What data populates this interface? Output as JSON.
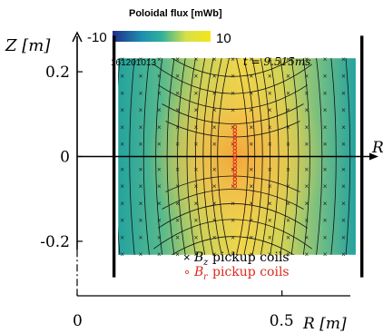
{
  "colors": {
    "cb_low": "#1f2d8a",
    "cb_mid1": "#1aa6a8",
    "cb_mid2": "#f3ea5a",
    "cb_high": "#f7e41a",
    "wall": "#000000",
    "bz_marker": "#222222",
    "br_marker": "#e0281e",
    "br_text": "#e0281e"
  },
  "chart_data": {
    "type": "heatmap",
    "title": "",
    "xlabel": "R [m]",
    "ylabel": "Z [m]",
    "x_ticks": [
      "0",
      "0.5"
    ],
    "y_ticks": [
      "0.2",
      "0",
      "-0.2"
    ],
    "colorbar": {
      "label": "Poloidal flux [mWb]",
      "min": -10,
      "max": 10,
      "min_label": "-10",
      "max_label": "10"
    },
    "shot_number": "161201013",
    "time_label": "t = 9.515ms",
    "xlim": [
      0.0,
      0.72
    ],
    "ylim": [
      -0.32,
      0.32
    ],
    "flux_region": {
      "r": [
        0.1,
        0.68
      ],
      "z": [
        -0.232,
        0.232
      ]
    },
    "walls_r": [
      0.09,
      0.695
    ],
    "wall_z": [
      -0.285,
      0.285
    ],
    "bz_coils": {
      "r": [
        0.11,
        0.155,
        0.2,
        0.245,
        0.29,
        0.335,
        0.38,
        0.425,
        0.47,
        0.515,
        0.56,
        0.605,
        0.65
      ],
      "z": [
        -0.23,
        -0.19,
        -0.15,
        -0.11,
        -0.07,
        -0.03,
        0.0,
        0.03,
        0.07,
        0.11,
        0.15,
        0.19,
        0.23
      ]
    },
    "br_coils": {
      "r": 0.385,
      "z_min": -0.07,
      "z_max": 0.07,
      "count": 18
    },
    "legend": [
      {
        "symbol": "×",
        "var": "B",
        "sub": "z",
        "text": "pickup coils"
      },
      {
        "symbol": "∘",
        "var": "B",
        "sub": "r",
        "text": "pickup coils"
      }
    ]
  }
}
